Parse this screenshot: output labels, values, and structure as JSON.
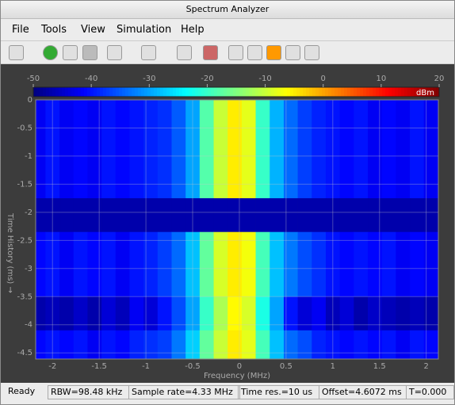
{
  "window": {
    "title": "Spectrum Analyzer"
  },
  "menu": [
    "File",
    "Tools",
    "View",
    "Simulation",
    "Help"
  ],
  "spectrogram": {
    "colorbar": {
      "label": "dBm",
      "lim": [
        -50,
        20
      ],
      "ticks": [
        -50,
        -40,
        -30,
        -20,
        -10,
        0,
        10,
        20
      ]
    },
    "xlabel": "Frequency (MHz)",
    "ylabel": "Time History (ms) →",
    "xlim": [
      -2.18,
      2.13
    ],
    "xticks": [
      -2,
      -1.5,
      -1,
      -0.5,
      0,
      0.5,
      1,
      1.5,
      2
    ],
    "ylim": [
      -4.61,
      0
    ],
    "yticks": [
      0,
      -0.5,
      -1,
      -1.5,
      -2,
      -2.5,
      -3,
      -3.5,
      -4,
      -4.5
    ],
    "freq_mhz": [
      -2.15,
      -2.0,
      -1.85,
      -1.7,
      -1.55,
      -1.4,
      -1.25,
      -1.1,
      -0.95,
      -0.8,
      -0.65,
      -0.5,
      -0.35,
      -0.2,
      -0.05,
      0.1,
      0.25,
      0.4,
      0.55,
      0.7,
      0.85,
      1.0,
      1.15,
      1.3,
      1.45,
      1.6,
      1.75,
      1.9,
      2.05
    ],
    "segments": [
      {
        "time_ms": [
          0,
          -1.75
        ],
        "level_dbm": [
          -42,
          -40,
          -42,
          -41,
          -42,
          -40,
          -41,
          -40,
          -39,
          -38,
          -35,
          -30,
          -18,
          -10,
          -5,
          -8,
          -20,
          -29,
          -34,
          -37,
          -39,
          -40,
          -41,
          -40,
          -42,
          -41,
          -42,
          -40,
          -42
        ]
      },
      {
        "time_ms": [
          -1.75,
          -2.35
        ],
        "level_dbm": [
          -47,
          -47,
          -47,
          -47,
          -47,
          -47,
          -47,
          -47,
          -47,
          -47,
          -47,
          -47,
          -47,
          -47,
          -47,
          -47,
          -47,
          -47,
          -47,
          -47,
          -47,
          -47,
          -47,
          -47,
          -47,
          -47,
          -47,
          -47,
          -47
        ]
      },
      {
        "time_ms": [
          -2.35,
          -3.5
        ],
        "level_dbm": [
          -41,
          -40,
          -42,
          -40,
          -41,
          -40,
          -42,
          -40,
          -39,
          -37,
          -34,
          -28,
          -17,
          -9,
          -5,
          -7,
          -19,
          -28,
          -33,
          -36,
          -38,
          -40,
          -41,
          -40,
          -41,
          -40,
          -42,
          -41,
          -42
        ]
      },
      {
        "time_ms": [
          -3.5,
          -4.1
        ],
        "level_dbm": [
          -47,
          -46,
          -47,
          -45,
          -47,
          -44,
          -46,
          -42,
          -44,
          -40,
          -36,
          -30,
          -20,
          -12,
          -6,
          -9,
          -22,
          -30,
          -40,
          -44,
          -42,
          -46,
          -44,
          -47,
          -45,
          -46,
          -47,
          -46,
          -47
        ]
      },
      {
        "time_ms": [
          -4.1,
          -4.61
        ],
        "level_dbm": [
          -41,
          -40,
          -41,
          -40,
          -42,
          -40,
          -41,
          -39,
          -38,
          -37,
          -33,
          -27,
          -17,
          -10,
          -5,
          -8,
          -19,
          -28,
          -34,
          -36,
          -39,
          -40,
          -41,
          -40,
          -41,
          -40,
          -42,
          -40,
          -41
        ]
      }
    ]
  },
  "status": [
    "Ready",
    "RBW=98.48 kHz",
    "Sample rate=4.33 MHz",
    "Time res.=10 us",
    "Offset=4.6072 ms",
    "T=0.000"
  ]
}
